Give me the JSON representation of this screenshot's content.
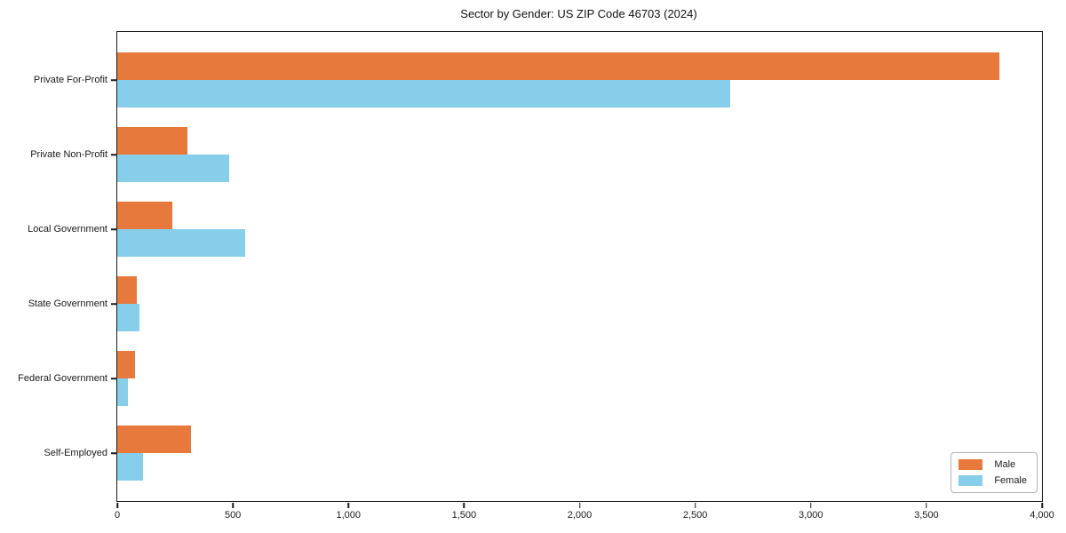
{
  "chart_data": {
    "type": "bar",
    "orientation": "horizontal",
    "title": "Sector by Gender: US ZIP Code 46703 (2024)",
    "categories": [
      "Private For-Profit",
      "Private Non-Profit",
      "Local Government",
      "State Government",
      "Federal Government",
      "Self-Employed"
    ],
    "series": [
      {
        "name": "Male",
        "color": "#E8793D",
        "values": [
          3815,
          305,
          240,
          85,
          75,
          320
        ]
      },
      {
        "name": "Female",
        "color": "#87CEEB",
        "values": [
          2650,
          485,
          555,
          95,
          45,
          110
        ]
      }
    ],
    "xlabel": "",
    "ylabel": "",
    "xlim": [
      0,
      4000
    ],
    "xticks": [
      0,
      500,
      1000,
      1500,
      2000,
      2500,
      3000,
      3500,
      4000
    ],
    "xtick_labels": [
      "0",
      "500",
      "1,000",
      "1,500",
      "2,000",
      "2,500",
      "3,000",
      "3,500",
      "4,000"
    ],
    "grid": false,
    "legend_position": "lower right",
    "plot_background": "#ffffff",
    "spine_color": "#1a1a1a"
  }
}
